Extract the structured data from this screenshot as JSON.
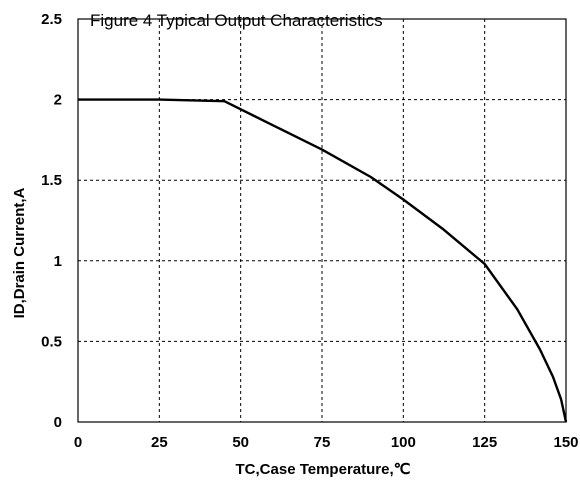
{
  "chart_data": {
    "type": "line",
    "title": "Figure 4 Typical Output Characteristics",
    "xlabel": "TC,Case Temperature,℃",
    "ylabel": "ID,Drain Current,A",
    "xlim": [
      0,
      150
    ],
    "ylim": [
      0,
      2.5
    ],
    "xticks": [
      "0",
      "25",
      "50",
      "75",
      "100",
      "125",
      "150"
    ],
    "yticks": [
      "0",
      "0.5",
      "1",
      "1.5",
      "2",
      "2.5"
    ],
    "grid": true,
    "series": [
      {
        "x": [
          0,
          25,
          45,
          60,
          75,
          90,
          100,
          112,
          125,
          135,
          142,
          146,
          148.5,
          150
        ],
        "values": [
          2.0,
          2.0,
          1.99,
          1.84,
          1.69,
          1.52,
          1.38,
          1.2,
          0.98,
          0.7,
          0.45,
          0.28,
          0.14,
          0.0
        ]
      }
    ]
  }
}
